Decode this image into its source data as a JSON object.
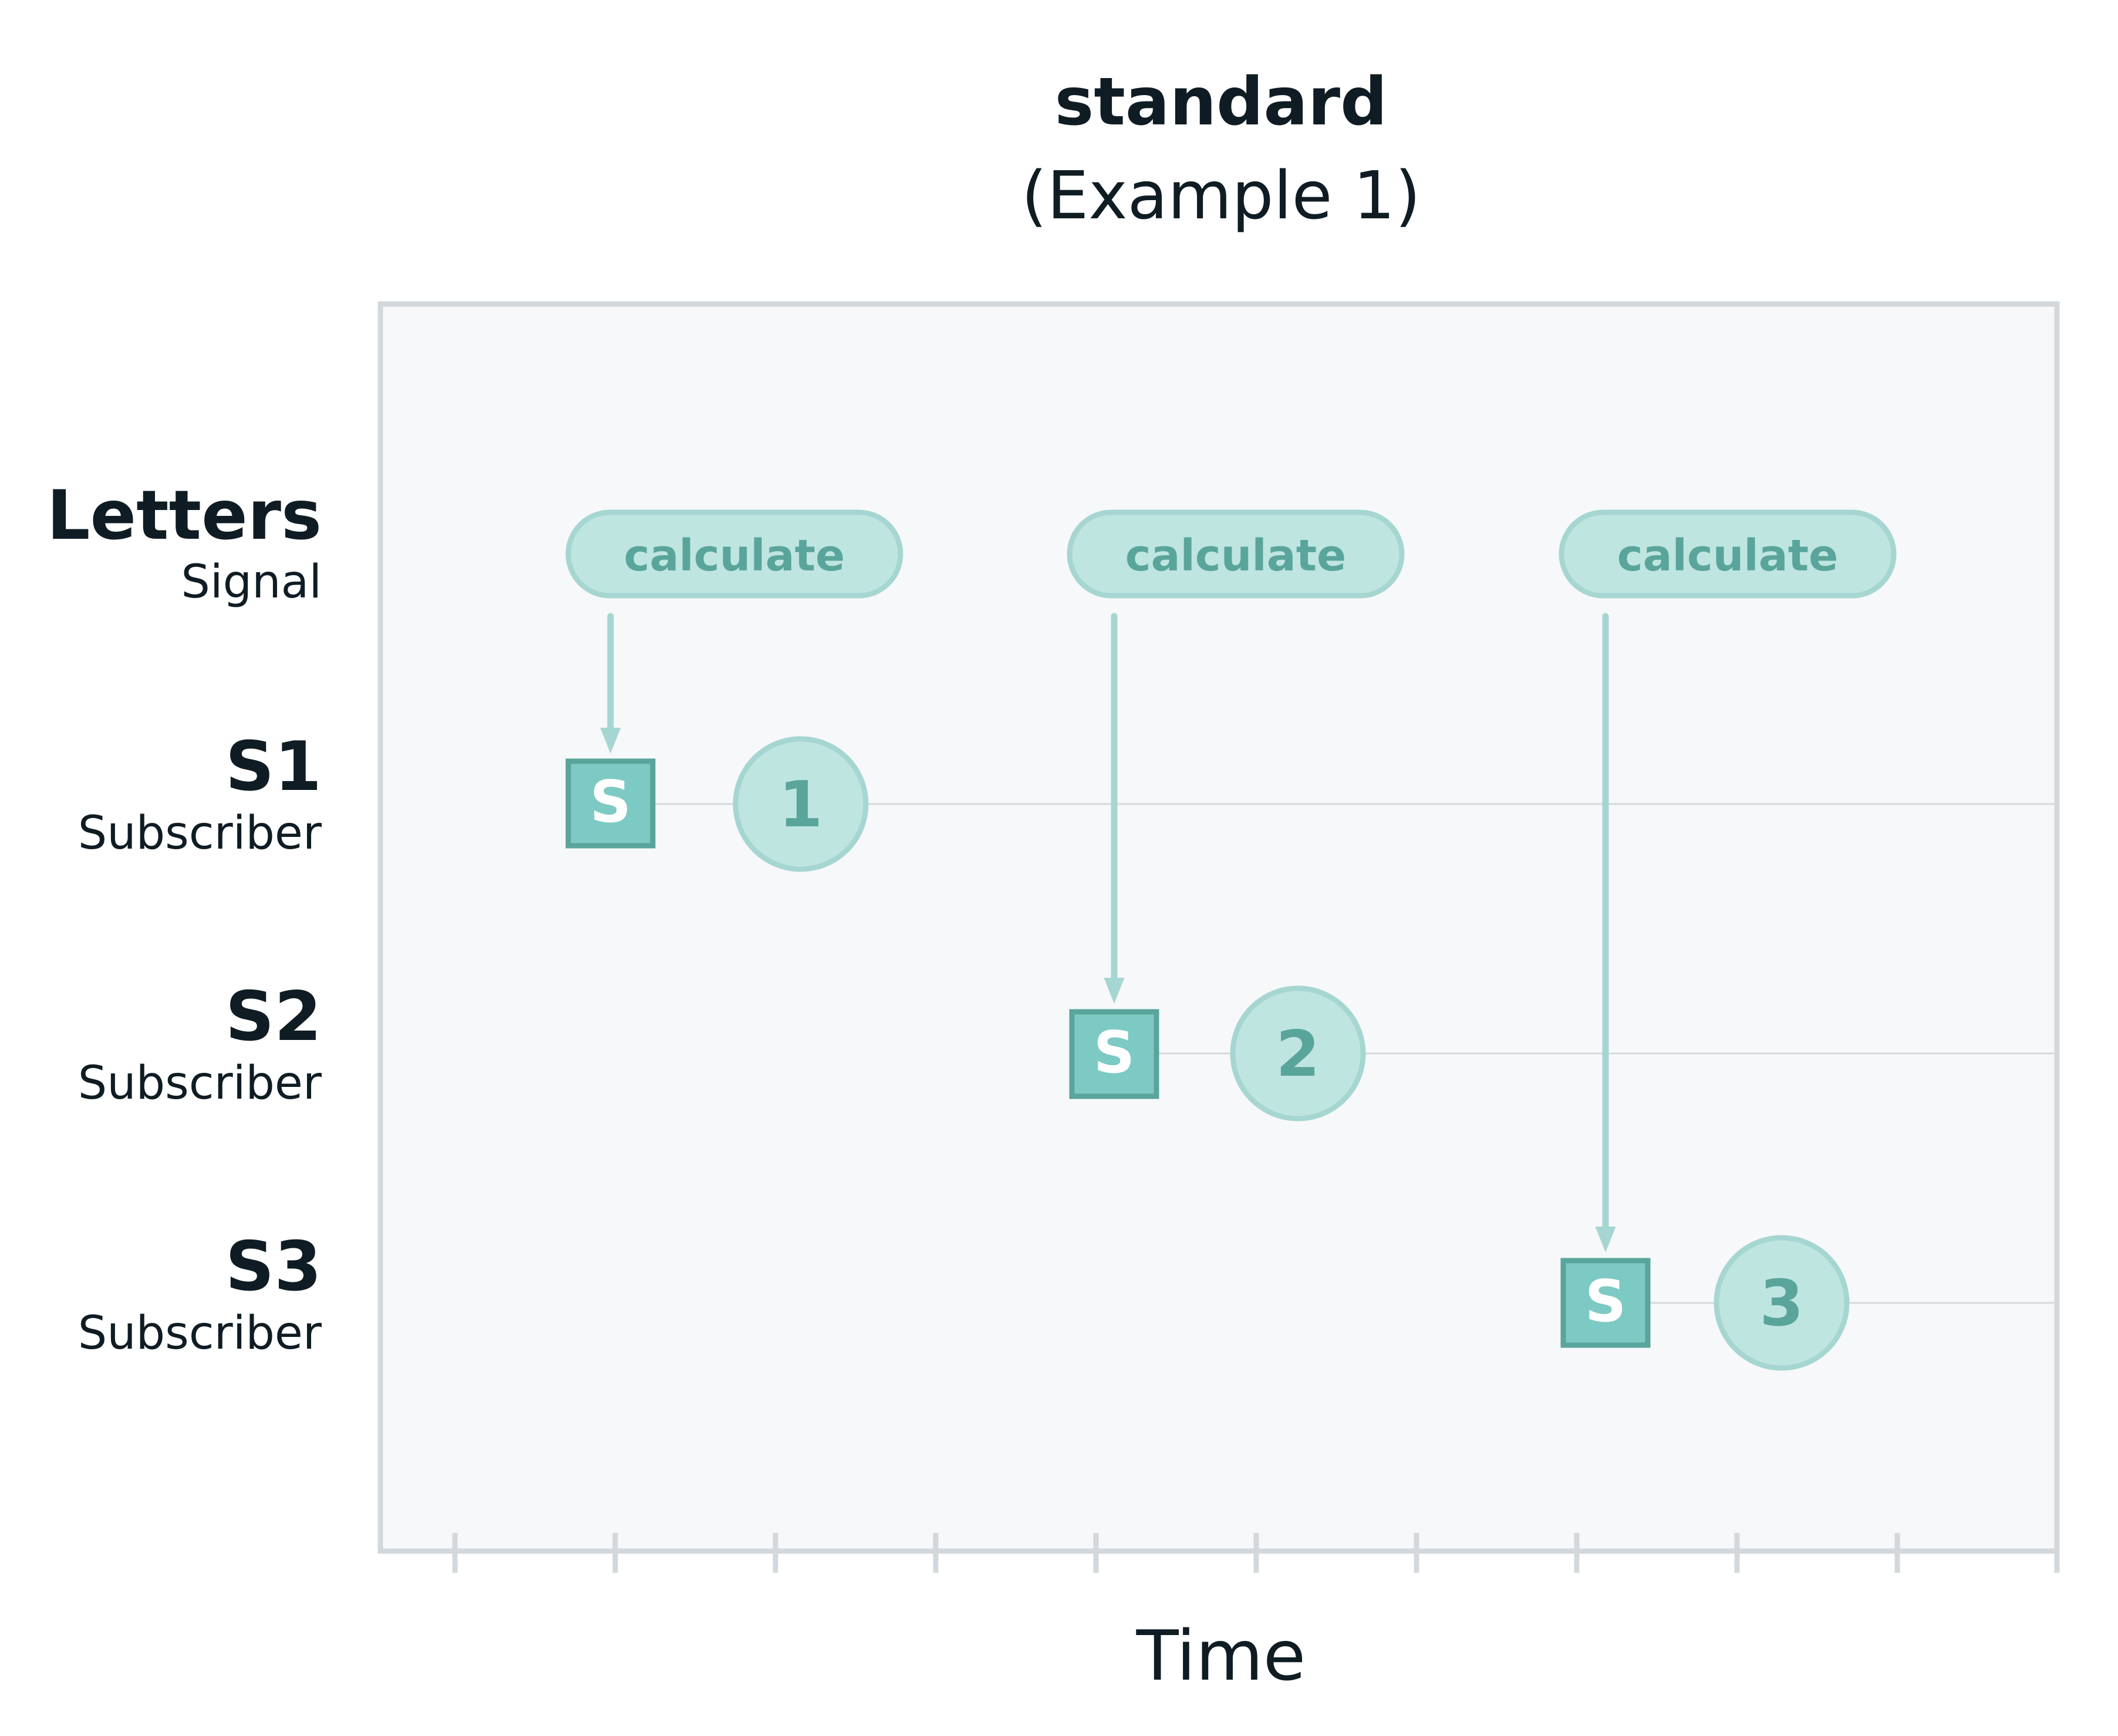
{
  "title": "standard",
  "subtitle": "(Example 1)",
  "x_axis_label": "Time",
  "ticks": 11,
  "colors": {
    "text": "#0f1c24",
    "frame": "#d3d8dc",
    "plot_bg": "#f7f8fa",
    "lane_line": "#d6dadc",
    "teal_fill": "#bfe5e1",
    "teal_stroke": "#a6d6d1",
    "teal_text": "#5aa59b",
    "square_fill": "#7ccac3",
    "square_stroke": "#5aa59b",
    "square_text": "#ffffff"
  },
  "lanes": [
    {
      "id": "letters",
      "name": "Letters",
      "kind": "Signal"
    },
    {
      "id": "s1",
      "name": "S1",
      "kind": "Subscriber"
    },
    {
      "id": "s2",
      "name": "S2",
      "kind": "Subscriber"
    },
    {
      "id": "s3",
      "name": "S3",
      "kind": "Subscriber"
    }
  ],
  "signal_events": [
    {
      "label": "calculate",
      "target_lane": "s1"
    },
    {
      "label": "calculate",
      "target_lane": "s2"
    },
    {
      "label": "calculate",
      "target_lane": "s3"
    }
  ],
  "subscriptions": [
    {
      "lane": "s1",
      "marker": "S"
    },
    {
      "lane": "s2",
      "marker": "S"
    },
    {
      "lane": "s3",
      "marker": "S"
    }
  ],
  "emissions": [
    {
      "lane": "s1",
      "value": "1"
    },
    {
      "lane": "s2",
      "value": "2"
    },
    {
      "lane": "s3",
      "value": "3"
    }
  ]
}
